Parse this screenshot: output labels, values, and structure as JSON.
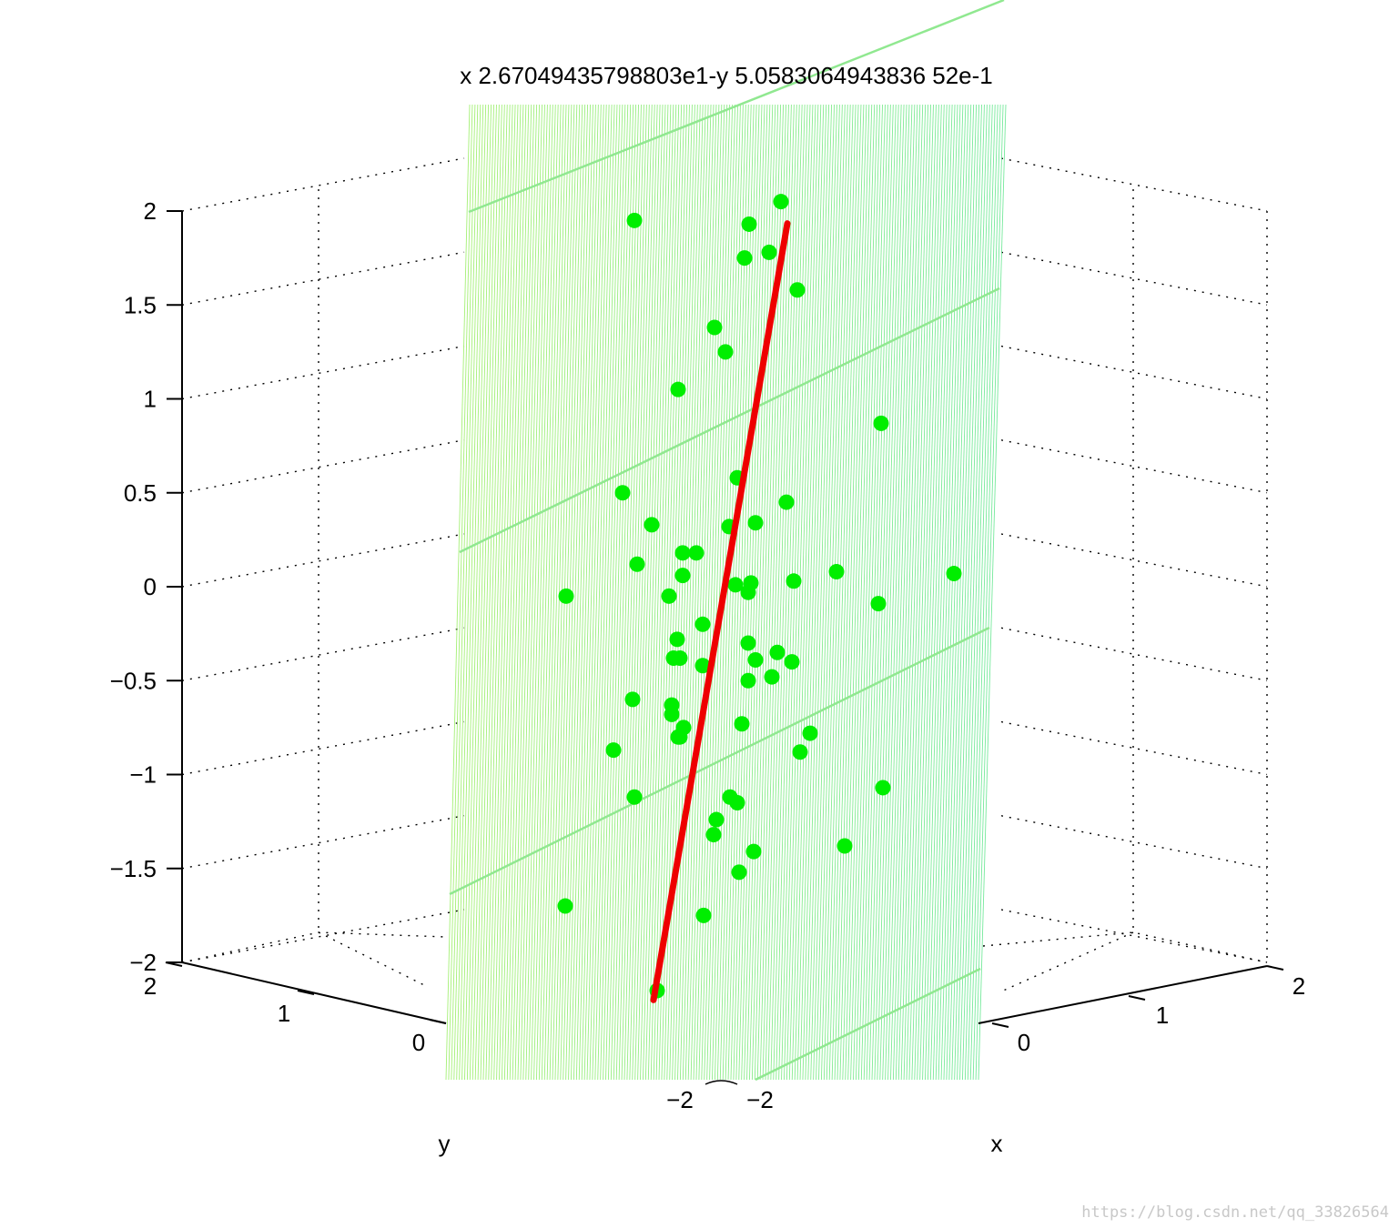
{
  "chart_data": {
    "type": "scatter",
    "title": "x 2.67049435798803e1-y 5.0583064943836 52e-1",
    "xlabel": "x",
    "ylabel": "y",
    "zlabel": "",
    "xlim": [
      -2,
      2
    ],
    "ylim": [
      -2,
      2
    ],
    "zlim": [
      -2,
      2
    ],
    "x_tick_labels": [
      "−2",
      "0",
      "1",
      "2"
    ],
    "y_tick_labels": [
      "2",
      "1",
      "0",
      "−2"
    ],
    "z_tick_labels": [
      "2",
      "1.5",
      "1",
      "0.5",
      "0",
      "−0.5",
      "−1",
      "−1.5",
      "−2"
    ],
    "z_ticks": [
      2,
      1.5,
      1,
      0.5,
      0,
      -0.5,
      -1,
      -1.5,
      -2
    ],
    "grid": true,
    "view": "3d",
    "colors": {
      "points": "#00ee00",
      "fit_line": "#ee0000",
      "plane_top": "#a8f070",
      "plane_bottom": "#50e8a0"
    },
    "points_z": [
      1.95,
      1.93,
      2.05,
      1.75,
      1.78,
      1.58,
      1.38,
      1.25,
      1.05,
      0.87,
      0.58,
      0.5,
      0.45,
      0.33,
      0.32,
      0.34,
      0.18,
      0.18,
      0.12,
      0.08,
      0.06,
      0.03,
      0.02,
      0.01,
      -0.03,
      -0.05,
      -0.05,
      -0.09,
      -0.2,
      -0.28,
      -0.3,
      -0.35,
      -0.38,
      -0.38,
      -0.39,
      -0.4,
      -0.42,
      -0.48,
      -0.5,
      -0.6,
      -0.63,
      -0.68,
      -0.73,
      -0.75,
      -0.78,
      -0.8,
      -0.8,
      -0.87,
      -0.88,
      -1.07,
      -1.12,
      -1.12,
      -1.15,
      -1.24,
      -1.32,
      -1.38,
      -1.41,
      -1.52,
      -1.7,
      -1.75,
      -2.15,
      0.07
    ],
    "fit_line": {
      "label": "",
      "z_range": [
        -2.2,
        2.05
      ]
    }
  },
  "watermark": "https://blog.csdn.net/qq_33826564"
}
